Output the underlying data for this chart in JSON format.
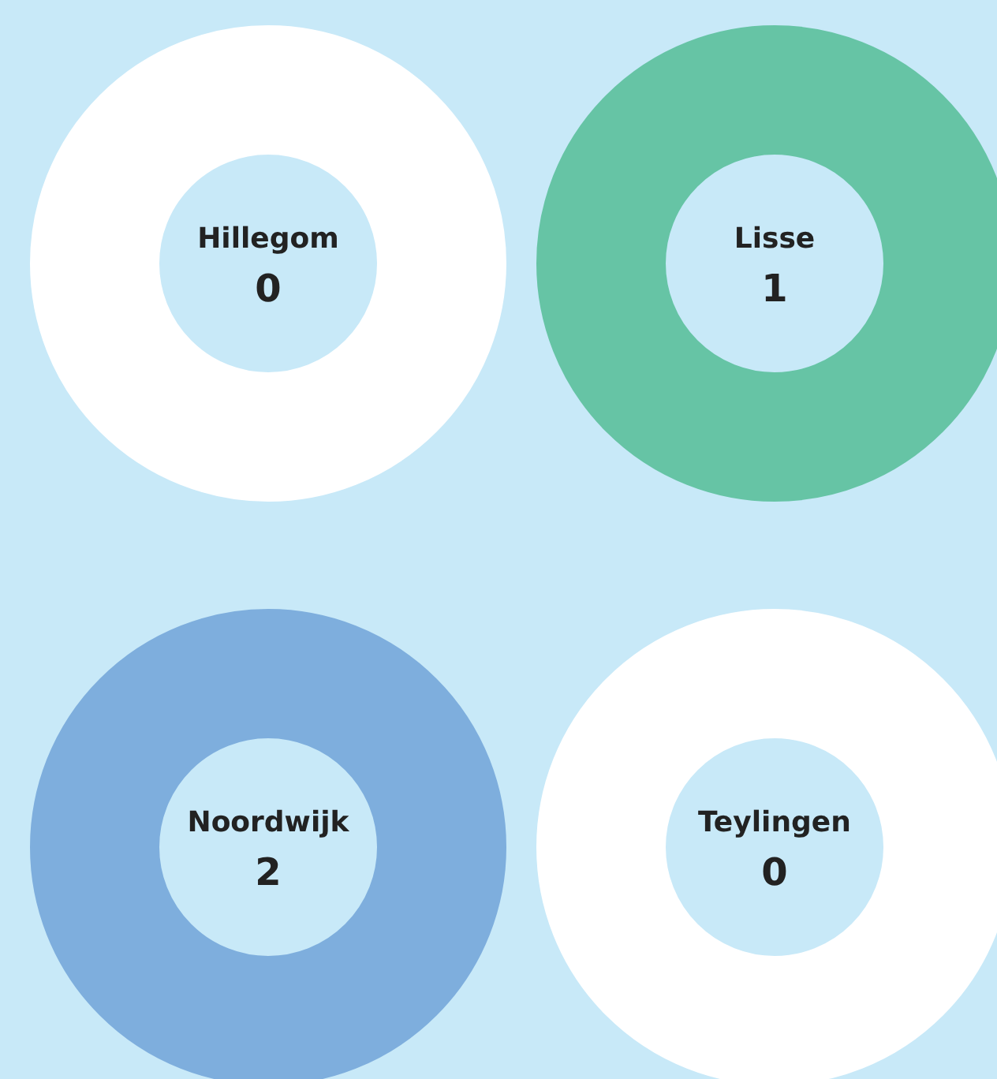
{
  "chart_data": [
    {
      "type": "other",
      "categories": [
        "Hillegom"
      ],
      "values": [
        0
      ],
      "colors": [
        "#ffffff"
      ],
      "data_labels": true
    },
    {
      "type": "other",
      "categories": [
        "Lisse"
      ],
      "values": [
        1
      ],
      "colors": [
        "#66c4a5"
      ],
      "data_labels": true
    },
    {
      "type": "other",
      "categories": [
        "Noordwijk"
      ],
      "values": [
        2
      ],
      "colors": [
        "#7eaedd"
      ],
      "data_labels": true
    },
    {
      "type": "other",
      "categories": [
        "Teylingen"
      ],
      "values": [
        0
      ],
      "colors": [
        "#ffffff"
      ],
      "data_labels": true
    }
  ]
}
